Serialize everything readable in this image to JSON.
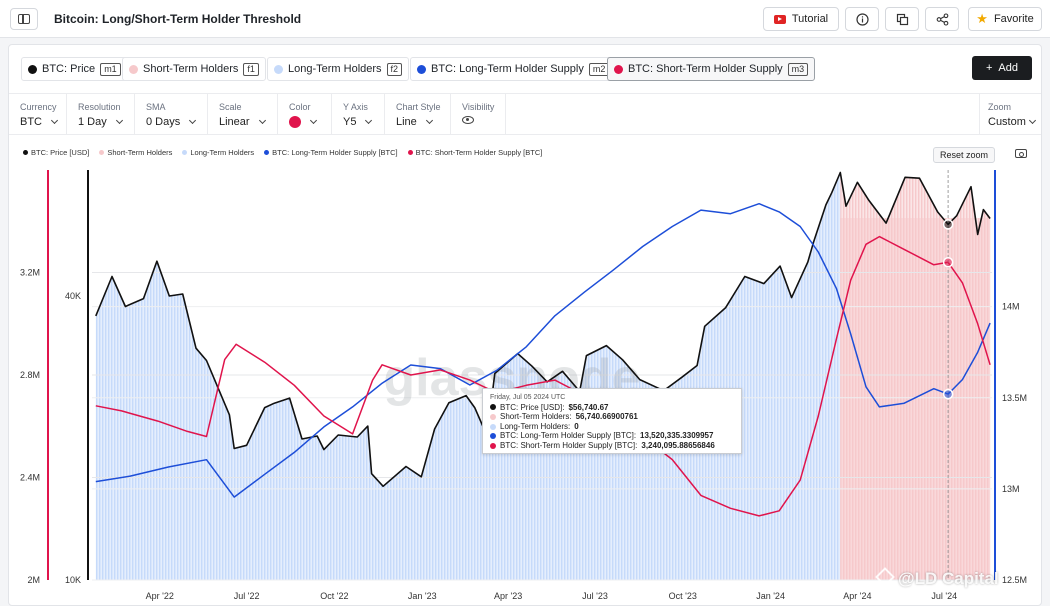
{
  "header": {
    "title": "Bitcoin: Long/Short-Term Holder Threshold",
    "tutorial_label": "Tutorial",
    "favorite_label": "Favorite"
  },
  "metrics": [
    {
      "label": "BTC: Price",
      "key": "m1",
      "color": "#111111",
      "active": false
    },
    {
      "label": "Short-Term Holders",
      "key": "f1",
      "color": "#f6c9cb",
      "active": false
    },
    {
      "label": "Long-Term Holders",
      "key": "f2",
      "color": "#c6dafa",
      "active": false
    },
    {
      "label": "BTC: Long-Term Holder Supply",
      "key": "m2",
      "color": "#1d4ed8",
      "active": false
    },
    {
      "label": "BTC: Short-Term Holder Supply",
      "key": "m3",
      "color": "#e0144c",
      "active": true
    }
  ],
  "add_label": "Add",
  "controls": {
    "currency": {
      "label": "Currency",
      "value": "BTC"
    },
    "resolution": {
      "label": "Resolution",
      "value": "1 Day"
    },
    "sma": {
      "label": "SMA",
      "value": "0 Days"
    },
    "scale": {
      "label": "Scale",
      "value": "Linear"
    },
    "color": {
      "label": "Color"
    },
    "yaxis": {
      "label": "Y Axis",
      "value": "Y5"
    },
    "chart_style": {
      "label": "Chart Style",
      "value": "Line"
    },
    "visibility": {
      "label": "Visibility"
    },
    "zoom": {
      "label": "Zoom",
      "value": "Custom"
    }
  },
  "legend": [
    "BTC: Price [USD]",
    "Short-Term Holders",
    "Long-Term Holders",
    "BTC: Long-Term Holder Supply [BTC]",
    "BTC: Short-Term Holder Supply [BTC]"
  ],
  "reset_zoom_label": "Reset zoom",
  "tooltip": {
    "date": "Friday, Jul 05 2024 UTC",
    "rows": [
      {
        "label": "BTC: Price [USD]:",
        "value": "$56,740.67",
        "color": "#111111"
      },
      {
        "label": "Short-Term Holders:",
        "value": "56,740.66900761",
        "color": "#f6c9cb"
      },
      {
        "label": "Long-Term Holders:",
        "value": "0",
        "color": "#c6dafa"
      },
      {
        "label": "BTC: Long-Term Holder Supply [BTC]:",
        "value": "13,520,335.3309957",
        "color": "#1d4ed8"
      },
      {
        "label": "BTC: Short-Term Holder Supply [BTC]:",
        "value": "3,240,095.88656846",
        "color": "#e0144c"
      }
    ]
  },
  "watermark_text": "@LD Capital",
  "chart_data": {
    "type": "line",
    "x_ticks": [
      "Apr '22",
      "Jul '22",
      "Oct '22",
      "Jan '23",
      "Apr '23",
      "Jul '23",
      "Oct '23",
      "Jan '24",
      "Apr '24",
      "Jul '24"
    ],
    "x_range": [
      "2022-01-20",
      "2024-08-20"
    ],
    "yaxes": {
      "left_outer": {
        "ticks": [
          "3.2M",
          "2.8M",
          "2.4M",
          "2M"
        ],
        "values": [
          3200000,
          2800000,
          2400000,
          2000000
        ],
        "range": [
          2000000,
          3600000
        ],
        "color": "#e0144c"
      },
      "left_inner": {
        "ticks": [
          "40K",
          "10K"
        ],
        "values": [
          40000,
          10000
        ],
        "range": [
          10000,
          74000
        ],
        "color": "#111111",
        "scale": "log"
      },
      "right": {
        "ticks": [
          "14M",
          "13.5M",
          "13M",
          "12.5M"
        ],
        "values": [
          14000000,
          13500000,
          13000000,
          12500000
        ],
        "range": [
          12500000,
          14750000
        ],
        "color": "#1d4ed8"
      }
    },
    "series": [
      {
        "name": "BTC: Price [USD]",
        "axis": "left_inner",
        "color": "#111111",
        "points": [
          [
            "2022-01-24",
            36300
          ],
          [
            "2022-02-10",
            44000
          ],
          [
            "2022-02-24",
            38000
          ],
          [
            "2022-03-15",
            39500
          ],
          [
            "2022-03-29",
            47400
          ],
          [
            "2022-04-11",
            40000
          ],
          [
            "2022-04-25",
            40400
          ],
          [
            "2022-05-09",
            31000
          ],
          [
            "2022-05-20",
            29200
          ],
          [
            "2022-06-13",
            22400
          ],
          [
            "2022-06-18",
            19000
          ],
          [
            "2022-07-01",
            19300
          ],
          [
            "2022-07-20",
            23200
          ],
          [
            "2022-07-30",
            23700
          ],
          [
            "2022-08-15",
            24300
          ],
          [
            "2022-08-28",
            19900
          ],
          [
            "2022-09-13",
            20200
          ],
          [
            "2022-09-20",
            18900
          ],
          [
            "2022-10-05",
            20300
          ],
          [
            "2022-10-25",
            20100
          ],
          [
            "2022-11-05",
            21200
          ],
          [
            "2022-11-09",
            16800
          ],
          [
            "2022-11-21",
            15800
          ],
          [
            "2022-12-15",
            17400
          ],
          [
            "2022-12-31",
            16550
          ],
          [
            "2023-01-14",
            20900
          ],
          [
            "2023-01-29",
            23750
          ],
          [
            "2023-02-16",
            24600
          ],
          [
            "2023-02-25",
            23200
          ],
          [
            "2023-03-10",
            20200
          ],
          [
            "2023-03-18",
            27400
          ],
          [
            "2023-04-11",
            30200
          ],
          [
            "2023-04-26",
            28400
          ],
          [
            "2023-05-12",
            26300
          ],
          [
            "2023-05-28",
            27700
          ],
          [
            "2023-06-15",
            25100
          ],
          [
            "2023-06-22",
            29900
          ],
          [
            "2023-07-13",
            31400
          ],
          [
            "2023-07-30",
            29300
          ],
          [
            "2023-08-17",
            26600
          ],
          [
            "2023-09-11",
            25200
          ],
          [
            "2023-09-30",
            26900
          ],
          [
            "2023-10-16",
            28500
          ],
          [
            "2023-10-24",
            34500
          ],
          [
            "2023-11-15",
            37800
          ],
          [
            "2023-12-05",
            44000
          ],
          [
            "2023-12-25",
            42500
          ],
          [
            "2024-01-11",
            46300
          ],
          [
            "2024-01-23",
            39700
          ],
          [
            "2024-02-09",
            47200
          ],
          [
            "2024-02-15",
            52000
          ],
          [
            "2024-02-28",
            62400
          ],
          [
            "2024-03-05",
            66200
          ],
          [
            "2024-03-14",
            73100
          ],
          [
            "2024-03-20",
            62000
          ],
          [
            "2024-04-01",
            69700
          ],
          [
            "2024-04-13",
            63800
          ],
          [
            "2024-05-01",
            57100
          ],
          [
            "2024-05-21",
            71400
          ],
          [
            "2024-06-05",
            71100
          ],
          [
            "2024-06-24",
            60300
          ],
          [
            "2024-07-05",
            56740
          ],
          [
            "2024-07-14",
            59200
          ],
          [
            "2024-07-29",
            68200
          ],
          [
            "2024-08-05",
            54000
          ],
          [
            "2024-08-11",
            61000
          ],
          [
            "2024-08-18",
            58400
          ]
        ]
      },
      {
        "name": "BTC: Long-Term Holder Supply [BTC]",
        "axis": "right",
        "color": "#1d4ed8",
        "points": [
          [
            "2022-01-24",
            13040000
          ],
          [
            "2022-03-01",
            13070000
          ],
          [
            "2022-04-10",
            13120000
          ],
          [
            "2022-05-20",
            13160000
          ],
          [
            "2022-06-18",
            12955000
          ],
          [
            "2022-07-20",
            13080000
          ],
          [
            "2022-08-20",
            13200000
          ],
          [
            "2022-09-20",
            13340000
          ],
          [
            "2022-10-20",
            13450000
          ],
          [
            "2022-11-20",
            13580000
          ],
          [
            "2022-12-20",
            13680000
          ],
          [
            "2023-01-20",
            13660000
          ],
          [
            "2023-02-20",
            13570000
          ],
          [
            "2023-03-20",
            13650000
          ],
          [
            "2023-04-20",
            13780000
          ],
          [
            "2023-05-20",
            13950000
          ],
          [
            "2023-06-20",
            14080000
          ],
          [
            "2023-07-20",
            14200000
          ],
          [
            "2023-08-20",
            14330000
          ],
          [
            "2023-09-20",
            14440000
          ],
          [
            "2023-10-20",
            14530000
          ],
          [
            "2023-11-20",
            14510000
          ],
          [
            "2023-12-20",
            14565000
          ],
          [
            "2024-01-10",
            14520000
          ],
          [
            "2024-02-01",
            14440000
          ],
          [
            "2024-02-20",
            14300000
          ],
          [
            "2024-03-10",
            14100000
          ],
          [
            "2024-03-25",
            13850000
          ],
          [
            "2024-04-10",
            13560000
          ],
          [
            "2024-04-24",
            13450000
          ],
          [
            "2024-05-20",
            13470000
          ],
          [
            "2024-06-20",
            13550000
          ],
          [
            "2024-07-05",
            13520000
          ],
          [
            "2024-07-20",
            13600000
          ],
          [
            "2024-08-05",
            13750000
          ],
          [
            "2024-08-18",
            13910000
          ]
        ]
      },
      {
        "name": "BTC: Short-Term Holder Supply [BTC]",
        "axis": "left_outer",
        "color": "#e0144c",
        "points": [
          [
            "2022-01-24",
            2680000
          ],
          [
            "2022-02-20",
            2660000
          ],
          [
            "2022-03-30",
            2620000
          ],
          [
            "2022-04-30",
            2580000
          ],
          [
            "2022-05-20",
            2560000
          ],
          [
            "2022-06-08",
            2860000
          ],
          [
            "2022-06-20",
            2920000
          ],
          [
            "2022-07-20",
            2850000
          ],
          [
            "2022-08-20",
            2760000
          ],
          [
            "2022-09-20",
            2640000
          ],
          [
            "2022-10-20",
            2570000
          ],
          [
            "2022-11-10",
            2780000
          ],
          [
            "2022-11-20",
            2840000
          ],
          [
            "2022-12-20",
            2800000
          ],
          [
            "2023-01-20",
            2820000
          ],
          [
            "2023-02-20",
            2780000
          ],
          [
            "2023-03-20",
            2730000
          ],
          [
            "2023-04-20",
            2760000
          ],
          [
            "2023-05-20",
            2780000
          ],
          [
            "2023-06-20",
            2720000
          ],
          [
            "2023-07-20",
            2660000
          ],
          [
            "2023-08-20",
            2560000
          ],
          [
            "2023-09-20",
            2470000
          ],
          [
            "2023-10-20",
            2330000
          ],
          [
            "2023-11-20",
            2280000
          ],
          [
            "2023-12-20",
            2250000
          ],
          [
            "2024-01-10",
            2270000
          ],
          [
            "2024-02-01",
            2390000
          ],
          [
            "2024-02-20",
            2640000
          ],
          [
            "2024-03-10",
            2940000
          ],
          [
            "2024-03-25",
            3170000
          ],
          [
            "2024-04-10",
            3310000
          ],
          [
            "2024-04-24",
            3340000
          ],
          [
            "2024-05-20",
            3290000
          ],
          [
            "2024-06-20",
            3230000
          ],
          [
            "2024-07-05",
            3240000
          ],
          [
            "2024-07-20",
            3160000
          ],
          [
            "2024-08-05",
            3000000
          ],
          [
            "2024-08-18",
            2840000
          ]
        ]
      }
    ],
    "areas": [
      {
        "name": "Long-Term Holders",
        "color": "#c6dafa",
        "from": "2022-01-24",
        "to": "2024-03-14"
      },
      {
        "name": "Short-Term Holders",
        "color": "#f6c9cb",
        "from": "2024-03-14",
        "to": "2024-08-18"
      }
    ],
    "crosshair_date": "2024-07-05",
    "grid": true,
    "legend_position": "top-left"
  }
}
